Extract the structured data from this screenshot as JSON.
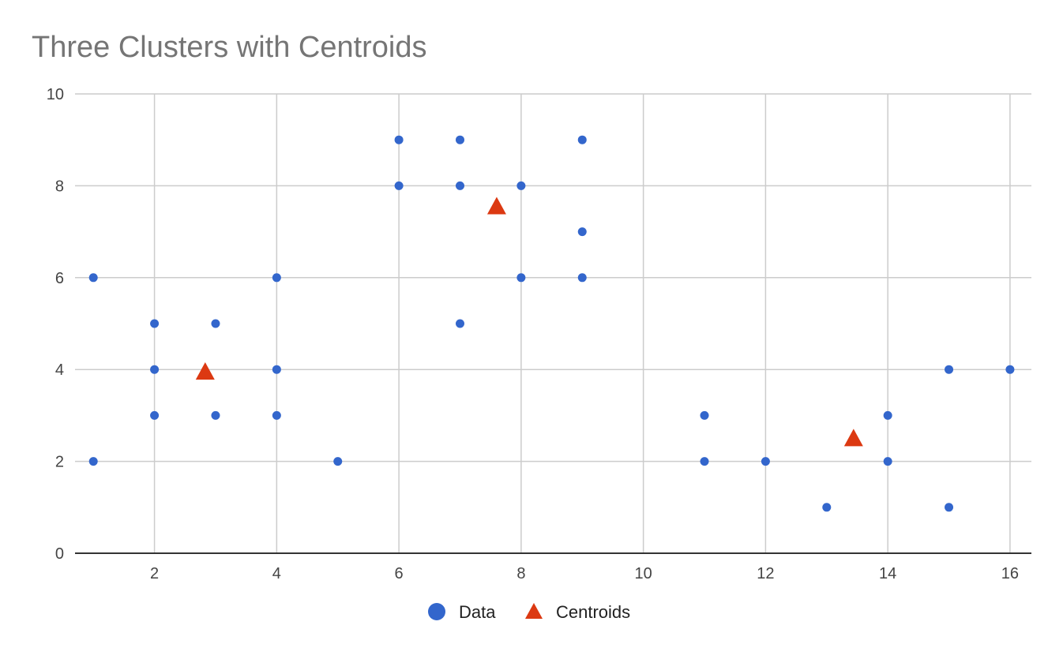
{
  "chart_data": {
    "type": "scatter",
    "title": "Three Clusters with Centroids",
    "xlabel": "",
    "ylabel": "",
    "xlim": [
      0.7,
      16.35
    ],
    "ylim": [
      0,
      10
    ],
    "x_ticks": [
      2,
      4,
      6,
      8,
      10,
      12,
      14,
      16
    ],
    "y_ticks": [
      0,
      2,
      4,
      6,
      8,
      10
    ],
    "grid": true,
    "legend_position": "bottom",
    "series": [
      {
        "name": "Data",
        "marker": "circle",
        "color": "#3366cc",
        "points": [
          [
            1,
            6
          ],
          [
            1,
            2
          ],
          [
            2,
            5
          ],
          [
            2,
            4
          ],
          [
            2,
            3
          ],
          [
            3,
            5
          ],
          [
            3,
            3
          ],
          [
            4,
            6
          ],
          [
            4,
            4
          ],
          [
            4,
            3
          ],
          [
            5,
            2
          ],
          [
            6,
            9
          ],
          [
            6,
            8
          ],
          [
            7,
            9
          ],
          [
            7,
            8
          ],
          [
            7,
            5
          ],
          [
            8,
            8
          ],
          [
            8,
            6
          ],
          [
            9,
            9
          ],
          [
            9,
            7
          ],
          [
            9,
            6
          ],
          [
            11,
            3
          ],
          [
            11,
            2
          ],
          [
            12,
            2
          ],
          [
            13,
            1
          ],
          [
            14,
            3
          ],
          [
            14,
            2
          ],
          [
            15,
            4
          ],
          [
            15,
            1
          ],
          [
            16,
            4
          ]
        ]
      },
      {
        "name": "Centroids",
        "marker": "triangle",
        "color": "#dc3912",
        "points": [
          [
            2.83,
            3.95
          ],
          [
            7.6,
            7.55
          ],
          [
            13.44,
            2.5
          ]
        ]
      }
    ]
  }
}
